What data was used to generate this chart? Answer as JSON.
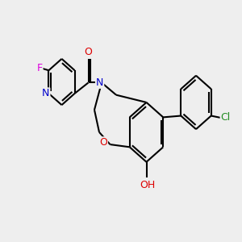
{
  "background_color": "#eeeeee",
  "bond_color": "#000000",
  "bond_lw": 1.5,
  "figsize": [
    3.0,
    3.0
  ],
  "dpi": 100,
  "xlim": [
    -0.5,
    9.5
  ],
  "ylim": [
    2.0,
    8.5
  ],
  "f_color": "#dd00dd",
  "n_color": "#0000cc",
  "o_color": "#dd0000",
  "cl_color": "#228b22",
  "oh_color": "#cc6666"
}
